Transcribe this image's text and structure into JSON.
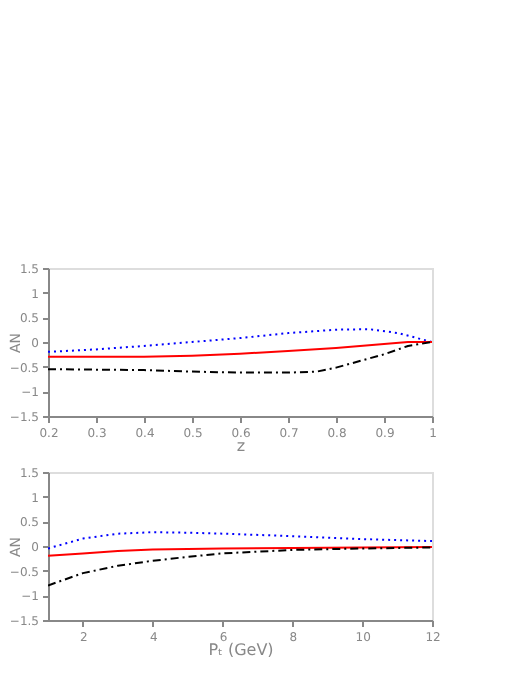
{
  "chart_data": [
    {
      "type": "line",
      "xlabel": "z",
      "ylabel": "AN",
      "xlim": [
        0.2,
        1
      ],
      "xticks": [
        0.2,
        0.3,
        0.4,
        0.5,
        0.6,
        0.7,
        0.8,
        0.9,
        1
      ],
      "ylim": [
        -1.5,
        1.5
      ],
      "yticks": [
        -1.5,
        -1,
        -0.5,
        0,
        0.5,
        1,
        1.5
      ],
      "grid": false,
      "series": [
        {
          "color": "#0000ff",
          "line_style": "dotted",
          "x": [
            0.2,
            0.3,
            0.4,
            0.5,
            0.6,
            0.7,
            0.8,
            0.87,
            0.93,
            1.0
          ],
          "values": [
            -0.2,
            -0.15,
            -0.08,
            0.0,
            0.08,
            0.18,
            0.25,
            0.26,
            0.18,
            0.0
          ]
        },
        {
          "color": "#ff0000",
          "line_style": "solid",
          "x": [
            0.2,
            0.4,
            0.5,
            0.6,
            0.7,
            0.8,
            0.9,
            0.95,
            1.0
          ],
          "values": [
            -0.3,
            -0.3,
            -0.28,
            -0.24,
            -0.18,
            -0.12,
            -0.04,
            0.0,
            0.0
          ]
        },
        {
          "color": "#000000",
          "line_style": "dashed",
          "x": [
            0.2,
            0.4,
            0.5,
            0.6,
            0.7,
            0.76,
            0.8,
            0.9,
            0.95,
            1.0
          ],
          "values": [
            -0.55,
            -0.57,
            -0.6,
            -0.62,
            -0.62,
            -0.6,
            -0.52,
            -0.25,
            -0.08,
            0.0
          ]
        }
      ]
    },
    {
      "type": "line",
      "xlabel": "Pₜ (GeV)",
      "ylabel": "AN",
      "xlim": [
        1,
        12
      ],
      "xticks": [
        2,
        4,
        6,
        8,
        10,
        12
      ],
      "ylim": [
        -1.5,
        1.5
      ],
      "yticks": [
        -1.5,
        -1,
        -0.5,
        0,
        0.5,
        1,
        1.5
      ],
      "grid": false,
      "series": [
        {
          "color": "#0000ff",
          "line_style": "dotted",
          "x": [
            1,
            2,
            3,
            4,
            5,
            6,
            8,
            10,
            12
          ],
          "values": [
            -0.05,
            0.15,
            0.25,
            0.28,
            0.27,
            0.25,
            0.2,
            0.14,
            0.1
          ]
        },
        {
          "color": "#ff0000",
          "line_style": "solid",
          "x": [
            1,
            2,
            3,
            4,
            6,
            8,
            10,
            12
          ],
          "values": [
            -0.2,
            -0.15,
            -0.1,
            -0.07,
            -0.05,
            -0.04,
            -0.03,
            -0.02
          ]
        },
        {
          "color": "#000000",
          "line_style": "dashed",
          "x": [
            1,
            2,
            3,
            4,
            5,
            6,
            8,
            10,
            12
          ],
          "values": [
            -0.8,
            -0.55,
            -0.4,
            -0.3,
            -0.22,
            -0.15,
            -0.08,
            -0.05,
            -0.03
          ]
        }
      ]
    }
  ]
}
